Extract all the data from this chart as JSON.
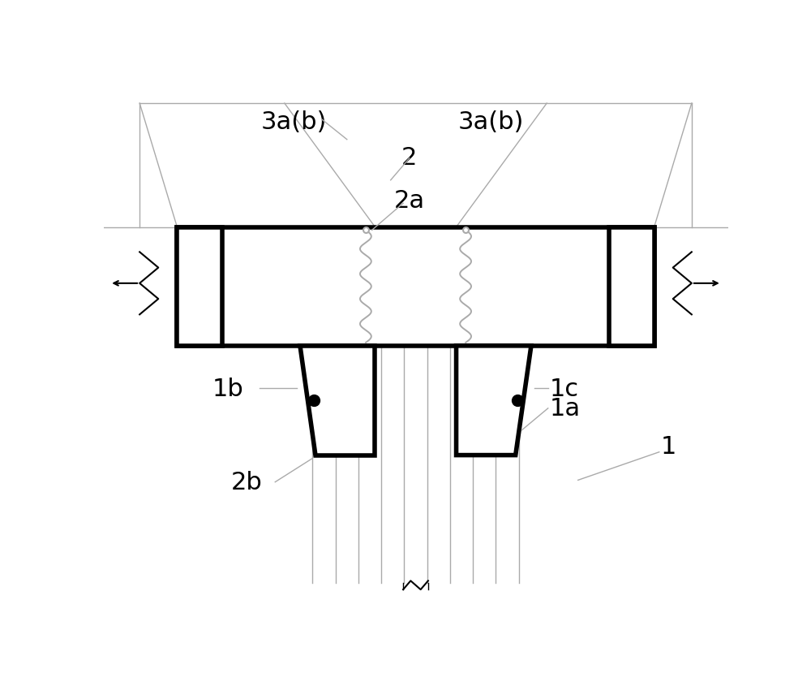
{
  "bg": "#ffffff",
  "lc": "#000000",
  "gc": "#aaaaaa",
  "tlw": 4.0,
  "nlw": 1.0,
  "mlw": 1.5,
  "fs": 22,
  "fig_w": 10.0,
  "fig_h": 8.62,
  "dpi": 100,
  "labels": {
    "3ab_L": [
      0.305,
      0.955,
      "3a(b)"
    ],
    "3ab_R": [
      0.62,
      0.955,
      "3a(b)"
    ],
    "2": [
      0.49,
      0.89,
      "2"
    ],
    "2a": [
      0.49,
      0.838,
      "2a"
    ],
    "1b": [
      0.205,
      0.572,
      "1b"
    ],
    "1c": [
      0.71,
      0.572,
      "1c"
    ],
    "1a": [
      0.71,
      0.548,
      "1a"
    ],
    "2b": [
      0.235,
      0.455,
      "2b"
    ],
    "1": [
      0.9,
      0.408,
      "1"
    ]
  }
}
